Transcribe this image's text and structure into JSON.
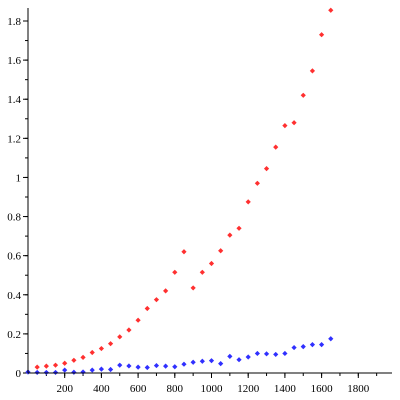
{
  "chart_data": {
    "type": "scatter",
    "title": "",
    "xlabel": "",
    "ylabel": "",
    "xlim": [
      0,
      1990
    ],
    "ylim": [
      0,
      1.88
    ],
    "grid": false,
    "legend": "none",
    "x_ticks": [
      {
        "value": 200,
        "label": "200"
      },
      {
        "value": 400,
        "label": "400"
      },
      {
        "value": 600,
        "label": "600"
      },
      {
        "value": 800,
        "label": "800"
      },
      {
        "value": 1000,
        "label": "1000"
      },
      {
        "value": 1200,
        "label": "1200"
      },
      {
        "value": 1400,
        "label": "1400"
      },
      {
        "value": 1600,
        "label": "1600"
      },
      {
        "value": 1800,
        "label": "1800"
      }
    ],
    "x_minor_step": 100,
    "y_ticks": [
      {
        "value": 0,
        "label": "0"
      },
      {
        "value": 0.2,
        "label": "0.2"
      },
      {
        "value": 0.4,
        "label": "0.4"
      },
      {
        "value": 0.6,
        "label": "0.6"
      },
      {
        "value": 0.8,
        "label": "0.8"
      },
      {
        "value": 1.0,
        "label": "1"
      },
      {
        "value": 1.2,
        "label": "1.2"
      },
      {
        "value": 1.4,
        "label": "1.4"
      },
      {
        "value": 1.6,
        "label": "1.6"
      },
      {
        "value": 1.8,
        "label": "1.8"
      }
    ],
    "y_minor_step": 0.1,
    "series": [
      {
        "color": "#ff3030",
        "points": [
          [
            50,
            0.03
          ],
          [
            100,
            0.035
          ],
          [
            150,
            0.04
          ],
          [
            200,
            0.05
          ],
          [
            250,
            0.065
          ],
          [
            300,
            0.08
          ],
          [
            350,
            0.105
          ],
          [
            400,
            0.125
          ],
          [
            450,
            0.15
          ],
          [
            500,
            0.185
          ],
          [
            550,
            0.22
          ],
          [
            600,
            0.27
          ],
          [
            650,
            0.33
          ],
          [
            700,
            0.375
          ],
          [
            750,
            0.42
          ],
          [
            800,
            0.515
          ],
          [
            850,
            0.62
          ],
          [
            900,
            0.435
          ],
          [
            950,
            0.515
          ],
          [
            1000,
            0.56
          ],
          [
            1050,
            0.625
          ],
          [
            1100,
            0.705
          ],
          [
            1150,
            0.74
          ],
          [
            1200,
            0.875
          ],
          [
            1250,
            0.97
          ],
          [
            1300,
            1.045
          ],
          [
            1350,
            1.155
          ],
          [
            1400,
            1.265
          ],
          [
            1450,
            1.28
          ],
          [
            1500,
            1.42
          ],
          [
            1550,
            1.545
          ],
          [
            1600,
            1.73
          ],
          [
            1650,
            1.855
          ]
        ]
      },
      {
        "color": "#3030ff",
        "points": [
          [
            0,
            0.005
          ],
          [
            50,
            0.003
          ],
          [
            100,
            0.003
          ],
          [
            150,
            0.003
          ],
          [
            200,
            0.015
          ],
          [
            250,
            0.004
          ],
          [
            300,
            0.005
          ],
          [
            350,
            0.015
          ],
          [
            400,
            0.02
          ],
          [
            450,
            0.018
          ],
          [
            500,
            0.04
          ],
          [
            550,
            0.036
          ],
          [
            600,
            0.03
          ],
          [
            650,
            0.028
          ],
          [
            700,
            0.038
          ],
          [
            750,
            0.035
          ],
          [
            800,
            0.032
          ],
          [
            850,
            0.045
          ],
          [
            900,
            0.055
          ],
          [
            950,
            0.06
          ],
          [
            1000,
            0.063
          ],
          [
            1050,
            0.048
          ],
          [
            1100,
            0.085
          ],
          [
            1150,
            0.068
          ],
          [
            1200,
            0.082
          ],
          [
            1250,
            0.1
          ],
          [
            1300,
            0.098
          ],
          [
            1350,
            0.095
          ],
          [
            1400,
            0.1
          ],
          [
            1450,
            0.13
          ],
          [
            1500,
            0.135
          ],
          [
            1550,
            0.145
          ],
          [
            1600,
            0.145
          ],
          [
            1650,
            0.175
          ]
        ]
      }
    ]
  }
}
